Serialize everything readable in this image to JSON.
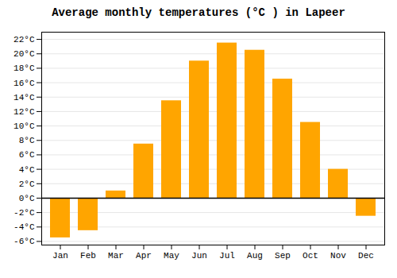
{
  "chart_data": {
    "type": "bar",
    "title": "Average monthly temperatures (°C ) in Lapeer",
    "categories": [
      "Jan",
      "Feb",
      "Mar",
      "Apr",
      "May",
      "Jun",
      "Jul",
      "Aug",
      "Sep",
      "Oct",
      "Nov",
      "Dec"
    ],
    "values": [
      -5.5,
      -4.5,
      1.0,
      7.5,
      13.5,
      19.0,
      21.5,
      20.5,
      16.5,
      10.5,
      4.0,
      -2.5
    ],
    "color": "#FFA500",
    "ylim": [
      -6.5,
      23
    ],
    "yticks": [
      {
        "value": -6,
        "label": "-6°C"
      },
      {
        "value": -4,
        "label": "-4°C"
      },
      {
        "value": -2,
        "label": "-2°C"
      },
      {
        "value": 0,
        "label": "0°C"
      },
      {
        "value": 2,
        "label": "2°C"
      },
      {
        "value": 4,
        "label": "4°C"
      },
      {
        "value": 6,
        "label": "6°C"
      },
      {
        "value": 8,
        "label": "8°C"
      },
      {
        "value": 10,
        "label": "10°C"
      },
      {
        "value": 12,
        "label": "12°C"
      },
      {
        "value": 14,
        "label": "14°C"
      },
      {
        "value": 16,
        "label": "16°C"
      },
      {
        "value": 18,
        "label": "18°C"
      },
      {
        "value": 20,
        "label": "20°C"
      },
      {
        "value": 22,
        "label": "22°C"
      }
    ],
    "grid": true
  }
}
